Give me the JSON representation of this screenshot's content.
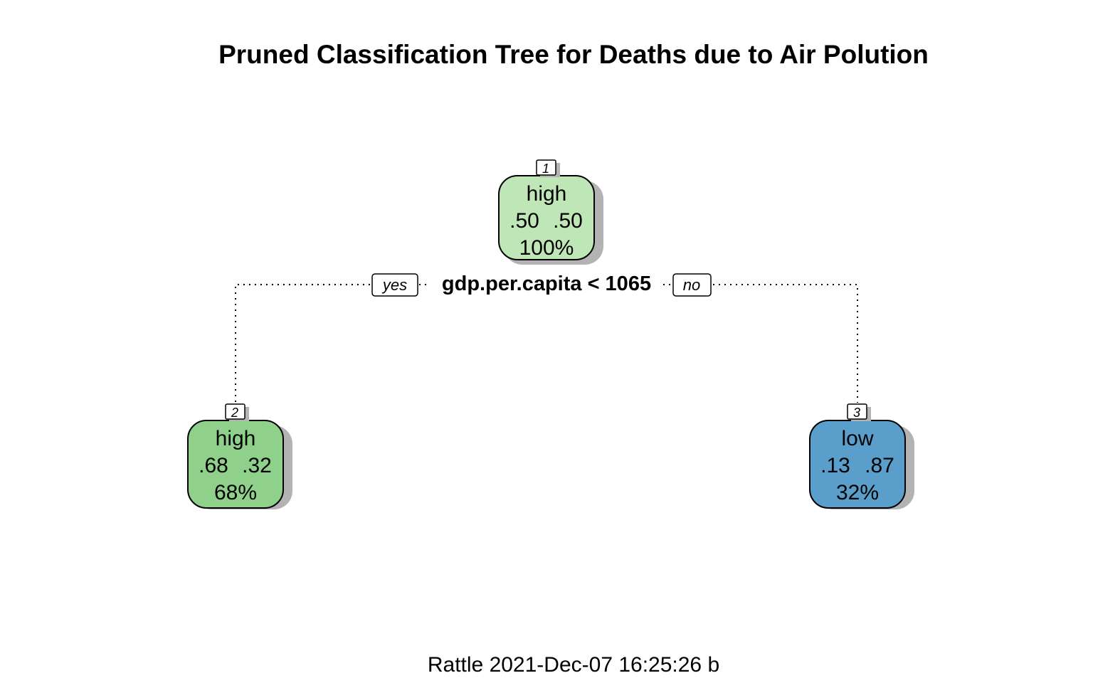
{
  "title": "Pruned Classification Tree for Deaths due to Air Polution",
  "footer": "Rattle 2021-Dec-07 16:25:26 b",
  "split": {
    "condition": "gdp.per.capita < 1065",
    "yes_label": "yes",
    "no_label": "no"
  },
  "nodes": [
    {
      "id": "1",
      "class": "high",
      "prob_high": ".50",
      "prob_low": ".50",
      "percent": "100%",
      "color": "#bfe6b6"
    },
    {
      "id": "2",
      "class": "high",
      "prob_high": ".68",
      "prob_low": ".32",
      "percent": "68%",
      "color": "#8fd18a"
    },
    {
      "id": "3",
      "class": "low",
      "prob_high": ".13",
      "prob_low": ".87",
      "percent": "32%",
      "color": "#5a9ecb"
    }
  ],
  "colors": {
    "shadow": "#b3b3b3",
    "edge": "#000000"
  }
}
